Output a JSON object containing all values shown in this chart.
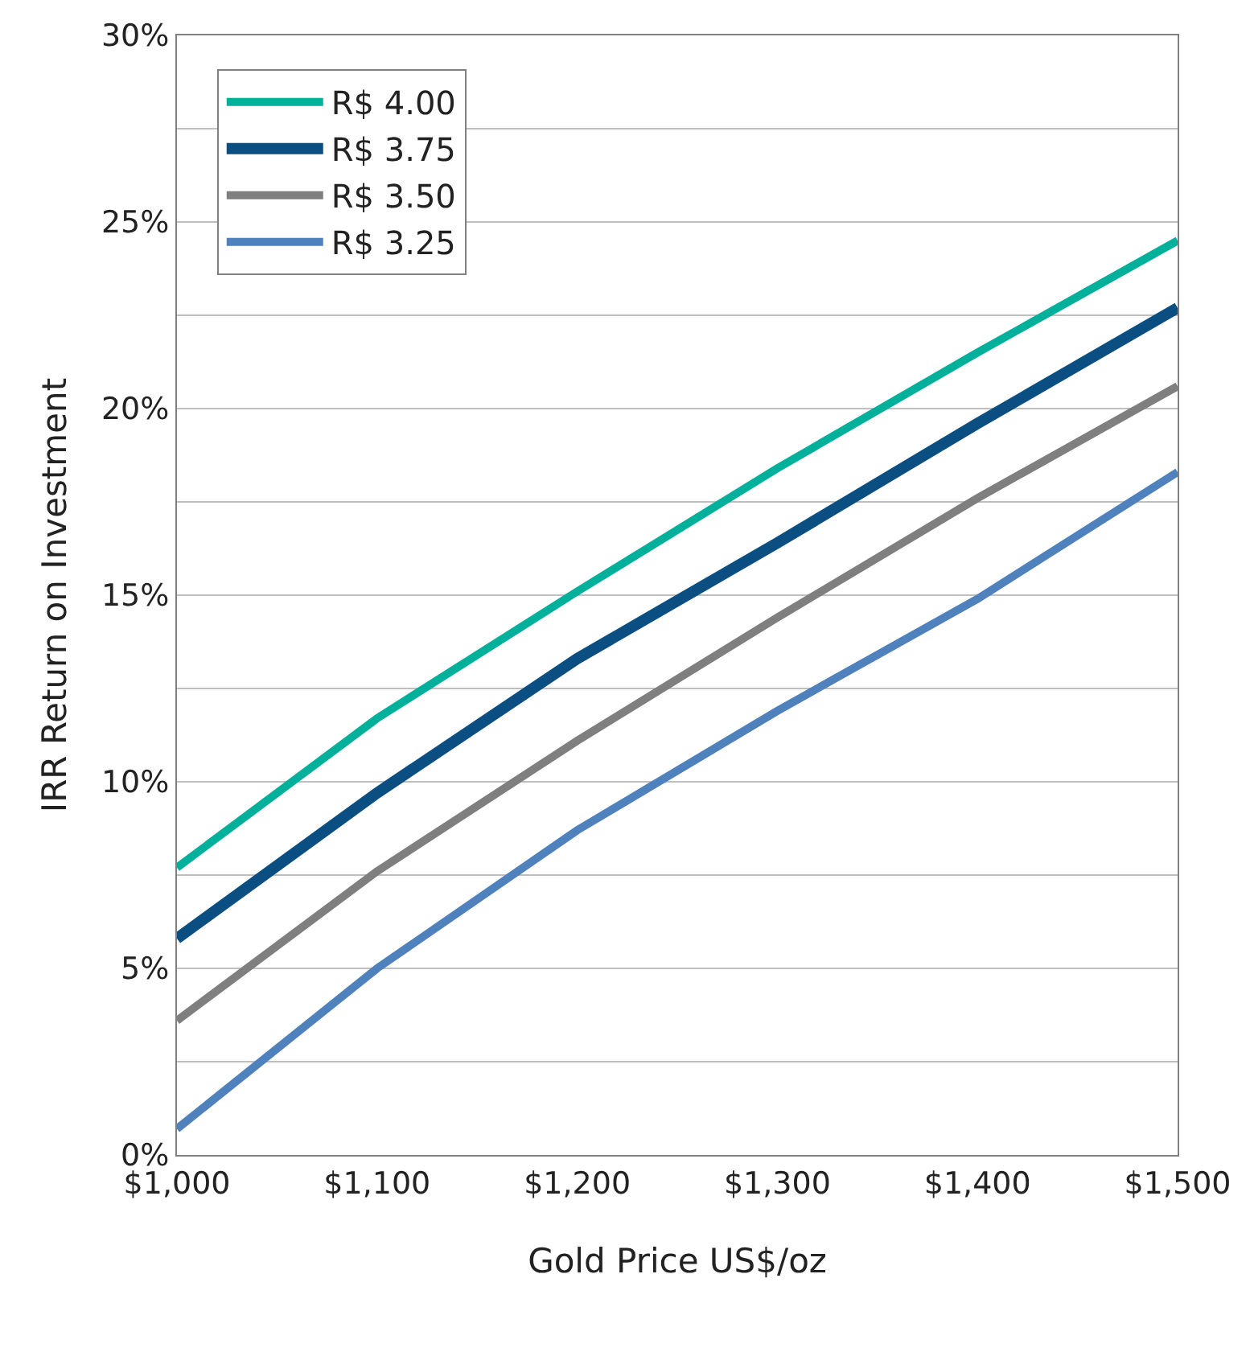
{
  "chart_data": {
    "type": "line",
    "xlabel": "Gold Price US$/oz",
    "ylabel": "IRR Return on Investment",
    "x": [
      1000,
      1100,
      1200,
      1300,
      1400,
      1500
    ],
    "series": [
      {
        "name": "R$ 4.00",
        "color": "#00b09b",
        "values": [
          7.7,
          11.7,
          15.1,
          18.4,
          21.5,
          24.5
        ]
      },
      {
        "name": "R$ 3.75",
        "color": "#0b4f82",
        "values": [
          5.8,
          9.7,
          13.3,
          16.4,
          19.6,
          22.7
        ]
      },
      {
        "name": "R$ 3.50",
        "color": "#7f7f7f",
        "values": [
          3.6,
          7.6,
          11.1,
          14.4,
          17.6,
          20.6
        ]
      },
      {
        "name": "R$ 3.25",
        "color": "#4f81bd",
        "values": [
          0.7,
          5.0,
          8.7,
          11.9,
          14.9,
          18.3
        ]
      }
    ],
    "xlim": [
      1000,
      1500
    ],
    "xticks": [
      {
        "value": 1000,
        "label": "$1,000"
      },
      {
        "value": 1100,
        "label": "$1,100"
      },
      {
        "value": 1200,
        "label": "$1,200"
      },
      {
        "value": 1300,
        "label": "$1,300"
      },
      {
        "value": 1400,
        "label": "$1,400"
      },
      {
        "value": 1500,
        "label": "$1,500"
      }
    ],
    "ylim": [
      0,
      30
    ],
    "yticks": [
      {
        "value": 0,
        "label": "0%"
      },
      {
        "value": 2.5,
        "label": null
      },
      {
        "value": 5,
        "label": "5%"
      },
      {
        "value": 7.5,
        "label": null
      },
      {
        "value": 10,
        "label": "10%"
      },
      {
        "value": 12.5,
        "label": null
      },
      {
        "value": 15,
        "label": "15%"
      },
      {
        "value": 17.5,
        "label": null
      },
      {
        "value": 20,
        "label": "20%"
      },
      {
        "value": 22.5,
        "label": null
      },
      {
        "value": 25,
        "label": "25%"
      },
      {
        "value": 27.5,
        "label": null
      },
      {
        "value": 30,
        "label": "30%"
      }
    ],
    "grid": "y",
    "legend": "top left",
    "marker": "none",
    "line_style": "solid"
  }
}
